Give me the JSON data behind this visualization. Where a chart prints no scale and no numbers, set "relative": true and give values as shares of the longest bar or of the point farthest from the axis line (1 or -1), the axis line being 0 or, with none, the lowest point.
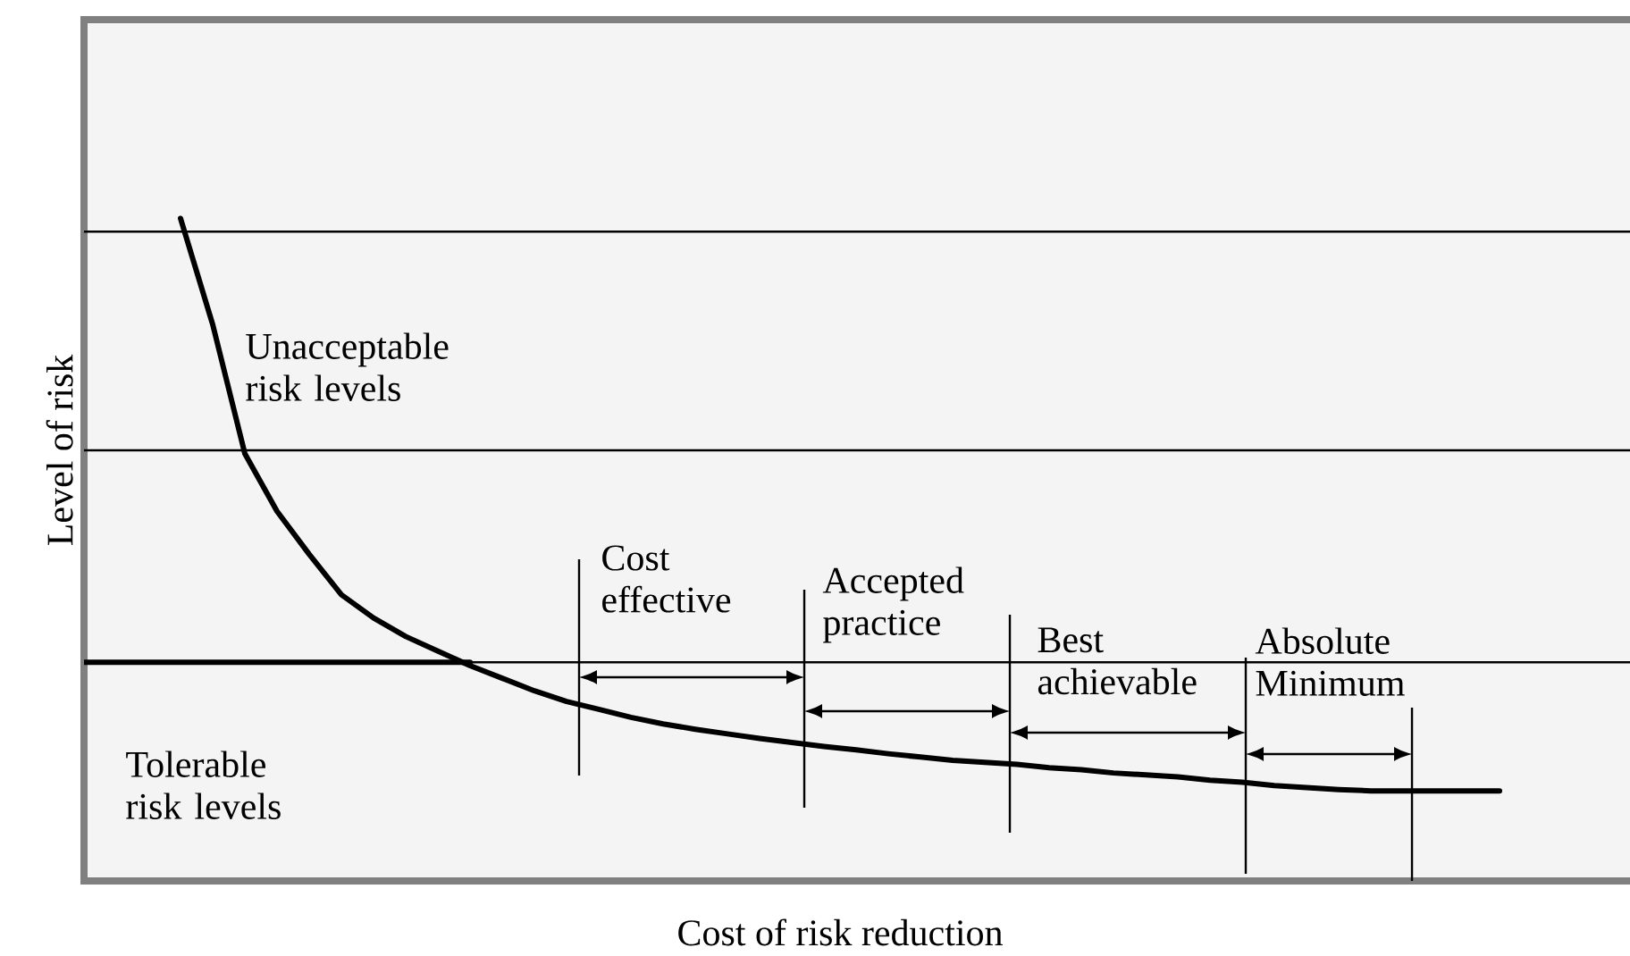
{
  "chart_data": {
    "type": "line",
    "relative": true,
    "xlabel": "Cost of risk reduction",
    "ylabel": "Level of risk",
    "marker": "none",
    "categories": [
      null,
      null,
      null,
      null,
      null,
      null,
      null,
      null,
      null,
      null,
      null,
      null,
      null,
      null,
      null,
      null,
      null,
      null,
      null,
      null,
      null,
      null,
      null,
      null,
      null,
      null,
      null,
      null,
      null,
      null,
      null,
      null,
      null,
      null,
      null,
      null,
      null,
      null,
      null,
      null,
      null,
      null,
      null,
      null,
      null,
      null,
      null,
      null,
      null
    ],
    "series": [
      {
        "color": "#000000",
        "values": [
          null,
          null,
          null,
          1.0,
          0.84,
          0.645,
          0.558,
          0.493,
          0.432,
          0.397,
          0.369,
          0.347,
          0.325,
          0.306,
          0.287,
          0.271,
          0.259,
          0.247,
          0.237,
          0.229,
          0.222,
          0.215,
          0.209,
          0.203,
          0.198,
          0.192,
          0.187,
          0.182,
          0.179,
          0.176,
          0.171,
          0.168,
          0.163,
          0.16,
          0.157,
          0.152,
          0.149,
          0.144,
          0.141,
          0.138,
          0.136,
          0.136,
          0.136,
          0.136,
          0.136,
          null,
          null,
          null,
          null
        ]
      },
      {
        "color": "#000000",
        "values": [
          0.33,
          0.33,
          0.33,
          0.33,
          0.33,
          0.33,
          0.33,
          0.33,
          0.33,
          0.33,
          0.33,
          0.33,
          0.33,
          null,
          null,
          null,
          null,
          null,
          null,
          null,
          null,
          null,
          null,
          null,
          null,
          null,
          null,
          null,
          null,
          null,
          null,
          null,
          null,
          null,
          null,
          null,
          null,
          null,
          null,
          null,
          null,
          null,
          null,
          null,
          null,
          null,
          null,
          null,
          null
        ]
      }
    ],
    "ref_lines": [
      {
        "axis": "y",
        "value": 0.98
      },
      {
        "axis": "y",
        "value": 0.65
      },
      {
        "axis": "y",
        "value": 0.33
      }
    ],
    "annotations": [
      "Unacceptable risk levels",
      "Tolerable risk levels",
      "Cost effective",
      "Accepted practice",
      "Best achievable",
      "Absolute Minimum"
    ]
  }
}
